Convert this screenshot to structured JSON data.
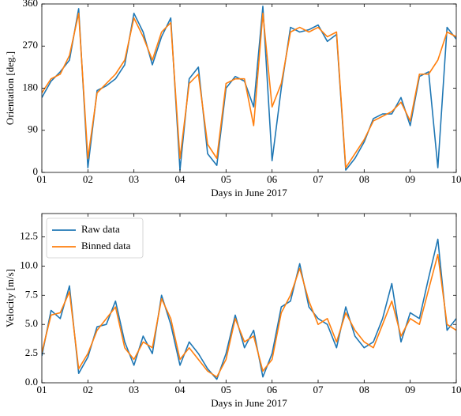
{
  "chart_data": [
    {
      "type": "line",
      "xlabel": "Days in June 2017",
      "ylabel": "Orientation [deg.]",
      "x": [
        1,
        1.2,
        1.4,
        1.6,
        1.8,
        2,
        2.2,
        2.4,
        2.6,
        2.8,
        3,
        3.2,
        3.4,
        3.6,
        3.8,
        4,
        4.2,
        4.4,
        4.6,
        4.8,
        5,
        5.2,
        5.4,
        5.6,
        5.8,
        6,
        6.2,
        6.4,
        6.6,
        6.8,
        7,
        7.2,
        7.4,
        7.6,
        7.8,
        8,
        8.2,
        8.4,
        8.6,
        8.8,
        9,
        9.2,
        9.4,
        9.6,
        9.8,
        10
      ],
      "series": [
        {
          "color": "#1f77b4",
          "values": [
            160,
            195,
            215,
            240,
            350,
            10,
            175,
            185,
            200,
            230,
            340,
            300,
            230,
            290,
            330,
            5,
            200,
            225,
            40,
            15,
            180,
            205,
            195,
            140,
            355,
            25,
            180,
            310,
            300,
            305,
            315,
            280,
            295,
            5,
            30,
            65,
            115,
            125,
            125,
            160,
            100,
            205,
            215,
            10,
            310,
            285
          ]
        },
        {
          "color": "#ff7f0e",
          "values": [
            170,
            200,
            210,
            250,
            340,
            30,
            170,
            190,
            210,
            240,
            330,
            290,
            240,
            300,
            320,
            30,
            190,
            210,
            60,
            30,
            190,
            200,
            200,
            100,
            340,
            140,
            190,
            300,
            310,
            300,
            310,
            290,
            300,
            10,
            40,
            70,
            110,
            120,
            130,
            150,
            110,
            210,
            210,
            240,
            300,
            290
          ]
        }
      ],
      "xlim": [
        1,
        10
      ],
      "xticks": [
        {
          "value": 1,
          "label": "01"
        },
        {
          "value": 2,
          "label": "02"
        },
        {
          "value": 3,
          "label": "03"
        },
        {
          "value": 4,
          "label": "04"
        },
        {
          "value": 5,
          "label": "05"
        },
        {
          "value": 6,
          "label": "06"
        },
        {
          "value": 7,
          "label": "07"
        },
        {
          "value": 8,
          "label": "08"
        },
        {
          "value": 9,
          "label": "09"
        },
        {
          "value": 10,
          "label": "10"
        }
      ],
      "ylim": [
        0,
        360
      ],
      "yticks": [
        0,
        90,
        180,
        270,
        360
      ]
    },
    {
      "type": "line",
      "xlabel": "Days in June 2017",
      "ylabel": "Velocity [m/s]",
      "x": [
        1,
        1.2,
        1.4,
        1.6,
        1.8,
        2,
        2.2,
        2.4,
        2.6,
        2.8,
        3,
        3.2,
        3.4,
        3.6,
        3.8,
        4,
        4.2,
        4.4,
        4.6,
        4.8,
        5,
        5.2,
        5.4,
        5.6,
        5.8,
        6,
        6.2,
        6.4,
        6.6,
        6.8,
        7,
        7.2,
        7.4,
        7.6,
        7.8,
        8,
        8.2,
        8.4,
        8.6,
        8.8,
        9,
        9.2,
        9.4,
        9.6,
        9.8,
        10
      ],
      "series": [
        {
          "name": "Raw data",
          "color": "#1f77b4",
          "values": [
            2.3,
            6.2,
            5.5,
            8.3,
            0.8,
            2.2,
            4.8,
            5.0,
            7.0,
            3.5,
            1.5,
            4.0,
            2.5,
            7.5,
            5.0,
            1.5,
            3.5,
            2.5,
            1.2,
            0.3,
            2.5,
            5.8,
            3.0,
            4.5,
            0.5,
            2.5,
            6.5,
            7.0,
            10.2,
            6.5,
            5.5,
            5.0,
            3.0,
            6.5,
            4.0,
            3.0,
            3.5,
            5.5,
            8.5,
            3.5,
            6.0,
            5.5,
            9.0,
            12.3,
            4.5,
            5.5
          ]
        },
        {
          "name": "Binned data",
          "color": "#ff7f0e",
          "values": [
            2.6,
            5.8,
            6.0,
            7.8,
            1.2,
            2.5,
            4.5,
            5.5,
            6.5,
            3.0,
            2.0,
            3.5,
            3.0,
            7.2,
            5.5,
            2.0,
            3.0,
            2.0,
            1.0,
            0.5,
            2.0,
            5.5,
            3.5,
            4.0,
            1.0,
            2.0,
            6.0,
            7.5,
            9.8,
            7.0,
            5.0,
            5.5,
            3.5,
            6.0,
            4.5,
            3.5,
            3.0,
            5.0,
            7.0,
            4.0,
            5.5,
            5.0,
            8.0,
            11.0,
            5.0,
            4.5
          ]
        }
      ],
      "legend": "upper left",
      "xlim": [
        1,
        10
      ],
      "xticks": [
        {
          "value": 1,
          "label": "01"
        },
        {
          "value": 2,
          "label": "02"
        },
        {
          "value": 3,
          "label": "03"
        },
        {
          "value": 4,
          "label": "04"
        },
        {
          "value": 5,
          "label": "05"
        },
        {
          "value": 6,
          "label": "06"
        },
        {
          "value": 7,
          "label": "07"
        },
        {
          "value": 8,
          "label": "08"
        },
        {
          "value": 9,
          "label": "09"
        },
        {
          "value": 10,
          "label": "10"
        }
      ],
      "ylim": [
        0,
        14.5
      ],
      "yticks": [
        {
          "value": 0,
          "label": "0.0"
        },
        2.5,
        {
          "value": 5,
          "label": "5.0"
        },
        7.5,
        {
          "value": 10,
          "label": "10.0"
        },
        12.5
      ]
    }
  ]
}
